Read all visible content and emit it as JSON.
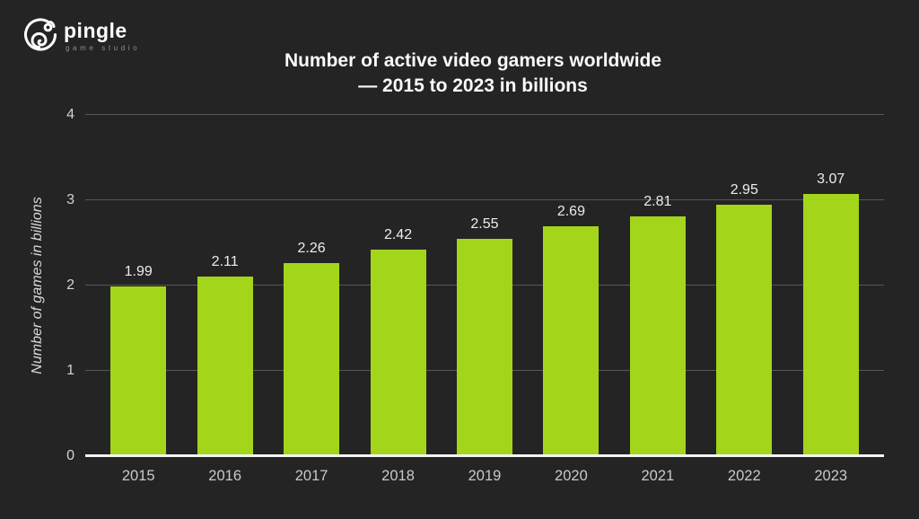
{
  "logo": {
    "name": "pingle",
    "subtitle": "game studio"
  },
  "chart_data": {
    "type": "bar",
    "title": "Number of active video gamers worldwide — 2015 to 2023 in billions",
    "title_line1": "Number of active video gamers worldwide",
    "title_line2": "— 2015 to 2023 in billions",
    "xlabel": "",
    "ylabel": "Number of games in billions",
    "categories": [
      "2015",
      "2016",
      "2017",
      "2018",
      "2019",
      "2020",
      "2021",
      "2022",
      "2023"
    ],
    "values": [
      1.99,
      2.11,
      2.26,
      2.42,
      2.55,
      2.69,
      2.81,
      2.95,
      3.07
    ],
    "value_labels": [
      "1.99",
      "2.11",
      "2.26",
      "2.42",
      "2.55",
      "2.69",
      "2.81",
      "2.95",
      "3.07"
    ],
    "ylim": [
      0,
      4
    ],
    "yticks": [
      0,
      1,
      2,
      3,
      4
    ],
    "grid": true,
    "legend_position": "none",
    "colors": {
      "bar": "#a3d51a",
      "background": "#242424",
      "gridline": "#575757",
      "axis_line": "#f5f5f5",
      "title_text": "#fafafa",
      "value_label_text": "#ededed",
      "tick_label_text": "#c9c9c9"
    }
  }
}
